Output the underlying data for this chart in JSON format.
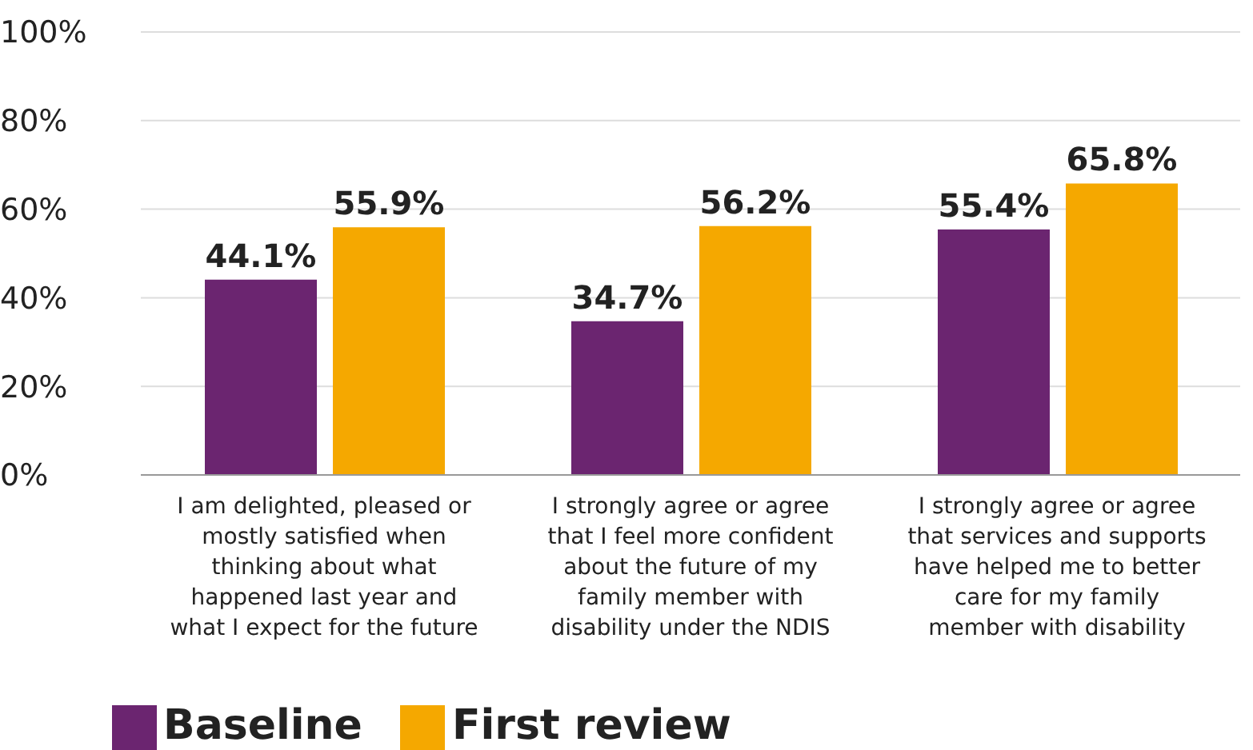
{
  "chart_data": {
    "type": "bar",
    "categories": [
      "I am delighted, pleased or mostly satisfied when thinking about what happened last year and what I expect for the future",
      "I strongly agree or agree that I feel more confident about the future of my family member with disability under the NDIS",
      "I strongly agree or agree that services and supports have helped me to better care for my family member with disability"
    ],
    "series": [
      {
        "name": "Baseline",
        "color": "#6b2570",
        "values": [
          44.1,
          34.7,
          55.4
        ],
        "value_labels": [
          "44.1%",
          "34.7%",
          "55.4%"
        ]
      },
      {
        "name": "First review",
        "color": "#f5a800",
        "values": [
          55.9,
          56.2,
          65.8
        ],
        "value_labels": [
          "55.9%",
          "56.2%",
          "65.8%"
        ]
      }
    ],
    "ylim": [
      0,
      100
    ],
    "yticks": [
      {
        "value": 0,
        "label": "0%"
      },
      {
        "value": 20,
        "label": "20%"
      },
      {
        "value": 40,
        "label": "40%"
      },
      {
        "value": 60,
        "label": "60%"
      },
      {
        "value": 80,
        "label": "80%"
      },
      {
        "value": 100,
        "label": "100%"
      }
    ],
    "grid": "y",
    "legend": "bottom left"
  }
}
